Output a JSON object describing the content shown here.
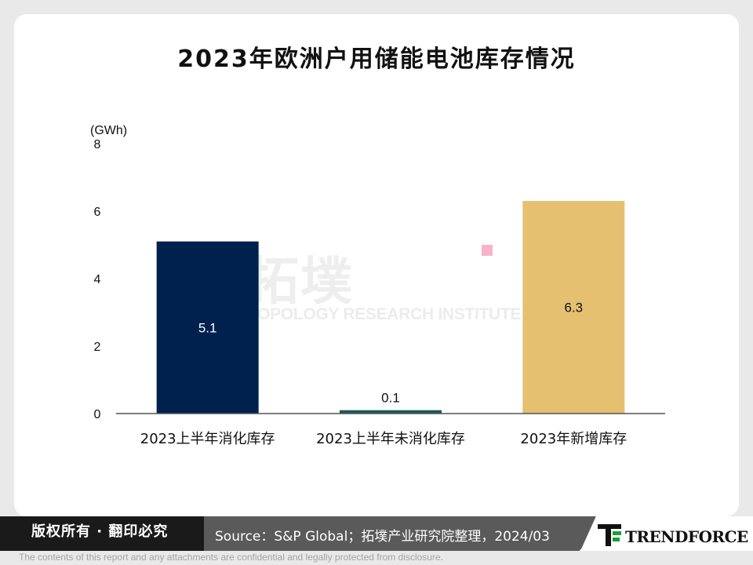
{
  "title": "2023年欧洲户用储能电池库存情况",
  "chart_data": {
    "type": "bar",
    "title": "2023年欧洲户用储能电池库存情况",
    "ylabel": "(GWh)",
    "xlabel": "",
    "ylim": [
      0,
      8
    ],
    "yticks": [
      "0",
      "2",
      "4",
      "6",
      "8"
    ],
    "categories": [
      "2023上半年消化库存",
      "2023上半年未消化库存",
      "2023年新增库存"
    ],
    "values": [
      5.1,
      0.1,
      6.3
    ],
    "value_labels": [
      "5.1",
      "0.1",
      "6.3"
    ],
    "colors": [
      "#00214d",
      "#1b5a5c",
      "#e4c070"
    ],
    "grid": false,
    "legend": "none"
  },
  "watermark": {
    "cn": "拓墣",
    "en": "TOPOLOGY RESEARCH INSTITUTE"
  },
  "footer": {
    "copyright": "版权所有 · 翻印必究",
    "source": "Source：S&P Global；拓墣产业研究院整理，2024/03",
    "logo_text": "TRENDFORCE",
    "disclaimer": "The contents of this report and any attachments are confidential and legally protected from disclosure."
  }
}
